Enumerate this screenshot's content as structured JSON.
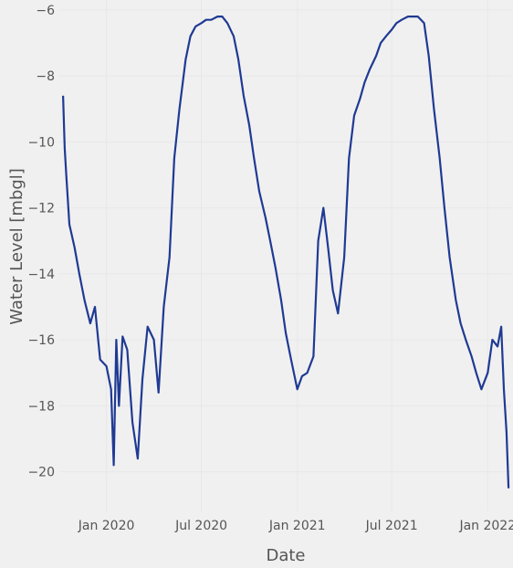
{
  "chart_data": {
    "type": "line",
    "title": "",
    "xlabel": "Date",
    "ylabel": "Water Level [mbgl]",
    "x_ticks": [
      {
        "date": "2020-01-01",
        "label": "Jan 2020"
      },
      {
        "date": "2020-07-01",
        "label": "Jul 2020"
      },
      {
        "date": "2021-01-01",
        "label": "Jan 2021"
      },
      {
        "date": "2021-07-01",
        "label": "Jul 2021"
      },
      {
        "date": "2022-01-01",
        "label": "Jan 2022"
      }
    ],
    "y_ticks": [
      {
        "value": -6,
        "label": "−6"
      },
      {
        "value": -8,
        "label": "−8"
      },
      {
        "value": -10,
        "label": "−10"
      },
      {
        "value": -12,
        "label": "−12"
      },
      {
        "value": -14,
        "label": "−14"
      },
      {
        "value": -16,
        "label": "−16"
      },
      {
        "value": -18,
        "label": "−18"
      },
      {
        "value": -20,
        "label": "−20"
      }
    ],
    "xlim": [
      "2019-10-01",
      "2022-02-15"
    ],
    "ylim": [
      -21.2,
      -5.7
    ],
    "grid": true,
    "series_color": "#1f3a93",
    "series": [
      {
        "x": [
          "2019-10-10",
          "2019-10-13",
          "2019-10-16",
          "2019-10-22",
          "2019-11-01",
          "2019-11-10",
          "2019-11-20",
          "2019-12-01",
          "2019-12-10",
          "2019-12-20",
          "2020-01-01",
          "2020-01-10",
          "2020-01-15",
          "2020-01-20",
          "2020-01-25",
          "2020-02-01",
          "2020-02-10",
          "2020-02-20",
          "2020-03-01",
          "2020-03-10",
          "2020-03-20",
          "2020-04-01",
          "2020-04-10",
          "2020-04-20",
          "2020-05-01",
          "2020-05-10",
          "2020-05-20",
          "2020-06-01",
          "2020-06-10",
          "2020-06-20",
          "2020-07-01",
          "2020-07-10",
          "2020-07-20",
          "2020-08-01",
          "2020-08-10",
          "2020-08-20",
          "2020-09-01",
          "2020-09-10",
          "2020-09-20",
          "2020-10-01",
          "2020-10-10",
          "2020-10-20",
          "2020-11-01",
          "2020-11-10",
          "2020-11-20",
          "2020-12-01",
          "2020-12-10",
          "2020-12-20",
          "2021-01-01",
          "2021-01-10",
          "2021-01-20",
          "2021-02-01",
          "2021-02-10",
          "2021-02-20",
          "2021-03-01",
          "2021-03-10",
          "2021-03-20",
          "2021-04-01",
          "2021-04-10",
          "2021-04-20",
          "2021-05-01",
          "2021-05-10",
          "2021-05-20",
          "2021-06-01",
          "2021-06-10",
          "2021-06-20",
          "2021-07-01",
          "2021-07-10",
          "2021-07-20",
          "2021-08-01",
          "2021-08-10",
          "2021-08-20",
          "2021-09-01",
          "2021-09-10",
          "2021-09-20",
          "2021-10-01",
          "2021-10-10",
          "2021-10-20",
          "2021-11-01",
          "2021-11-10",
          "2021-11-20",
          "2021-12-01",
          "2021-12-10",
          "2021-12-20",
          "2022-01-01",
          "2022-01-10",
          "2022-01-20",
          "2022-01-27",
          "2022-02-01",
          "2022-02-06",
          "2022-02-10"
        ],
        "y": [
          -8.6,
          -10.2,
          -11.0,
          -12.5,
          -13.2,
          -14.0,
          -14.8,
          -15.5,
          -15.0,
          -16.6,
          -16.8,
          -17.5,
          -19.8,
          -16.0,
          -18.0,
          -15.9,
          -16.3,
          -18.5,
          -19.6,
          -17.2,
          -15.6,
          -16.0,
          -17.6,
          -15.0,
          -13.5,
          -10.5,
          -9.0,
          -7.5,
          -6.8,
          -6.5,
          -6.4,
          -6.3,
          -6.3,
          -6.2,
          -6.2,
          -6.4,
          -6.8,
          -7.5,
          -8.6,
          -9.5,
          -10.5,
          -11.5,
          -12.3,
          -13.0,
          -13.8,
          -14.8,
          -15.8,
          -16.6,
          -17.5,
          -17.1,
          -17.0,
          -16.5,
          -13.0,
          -12.0,
          -13.2,
          -14.5,
          -15.2,
          -13.5,
          -10.5,
          -9.2,
          -8.7,
          -8.2,
          -7.8,
          -7.4,
          -7.0,
          -6.8,
          -6.6,
          -6.4,
          -6.3,
          -6.2,
          -6.2,
          -6.2,
          -6.4,
          -7.4,
          -9.0,
          -10.5,
          -12.0,
          -13.5,
          -14.8,
          -15.5,
          -16.0,
          -16.5,
          -17.0,
          -17.5,
          -17.0,
          -16.0,
          -16.2,
          -15.6,
          -17.5,
          -18.8,
          -20.5
        ]
      }
    ]
  }
}
